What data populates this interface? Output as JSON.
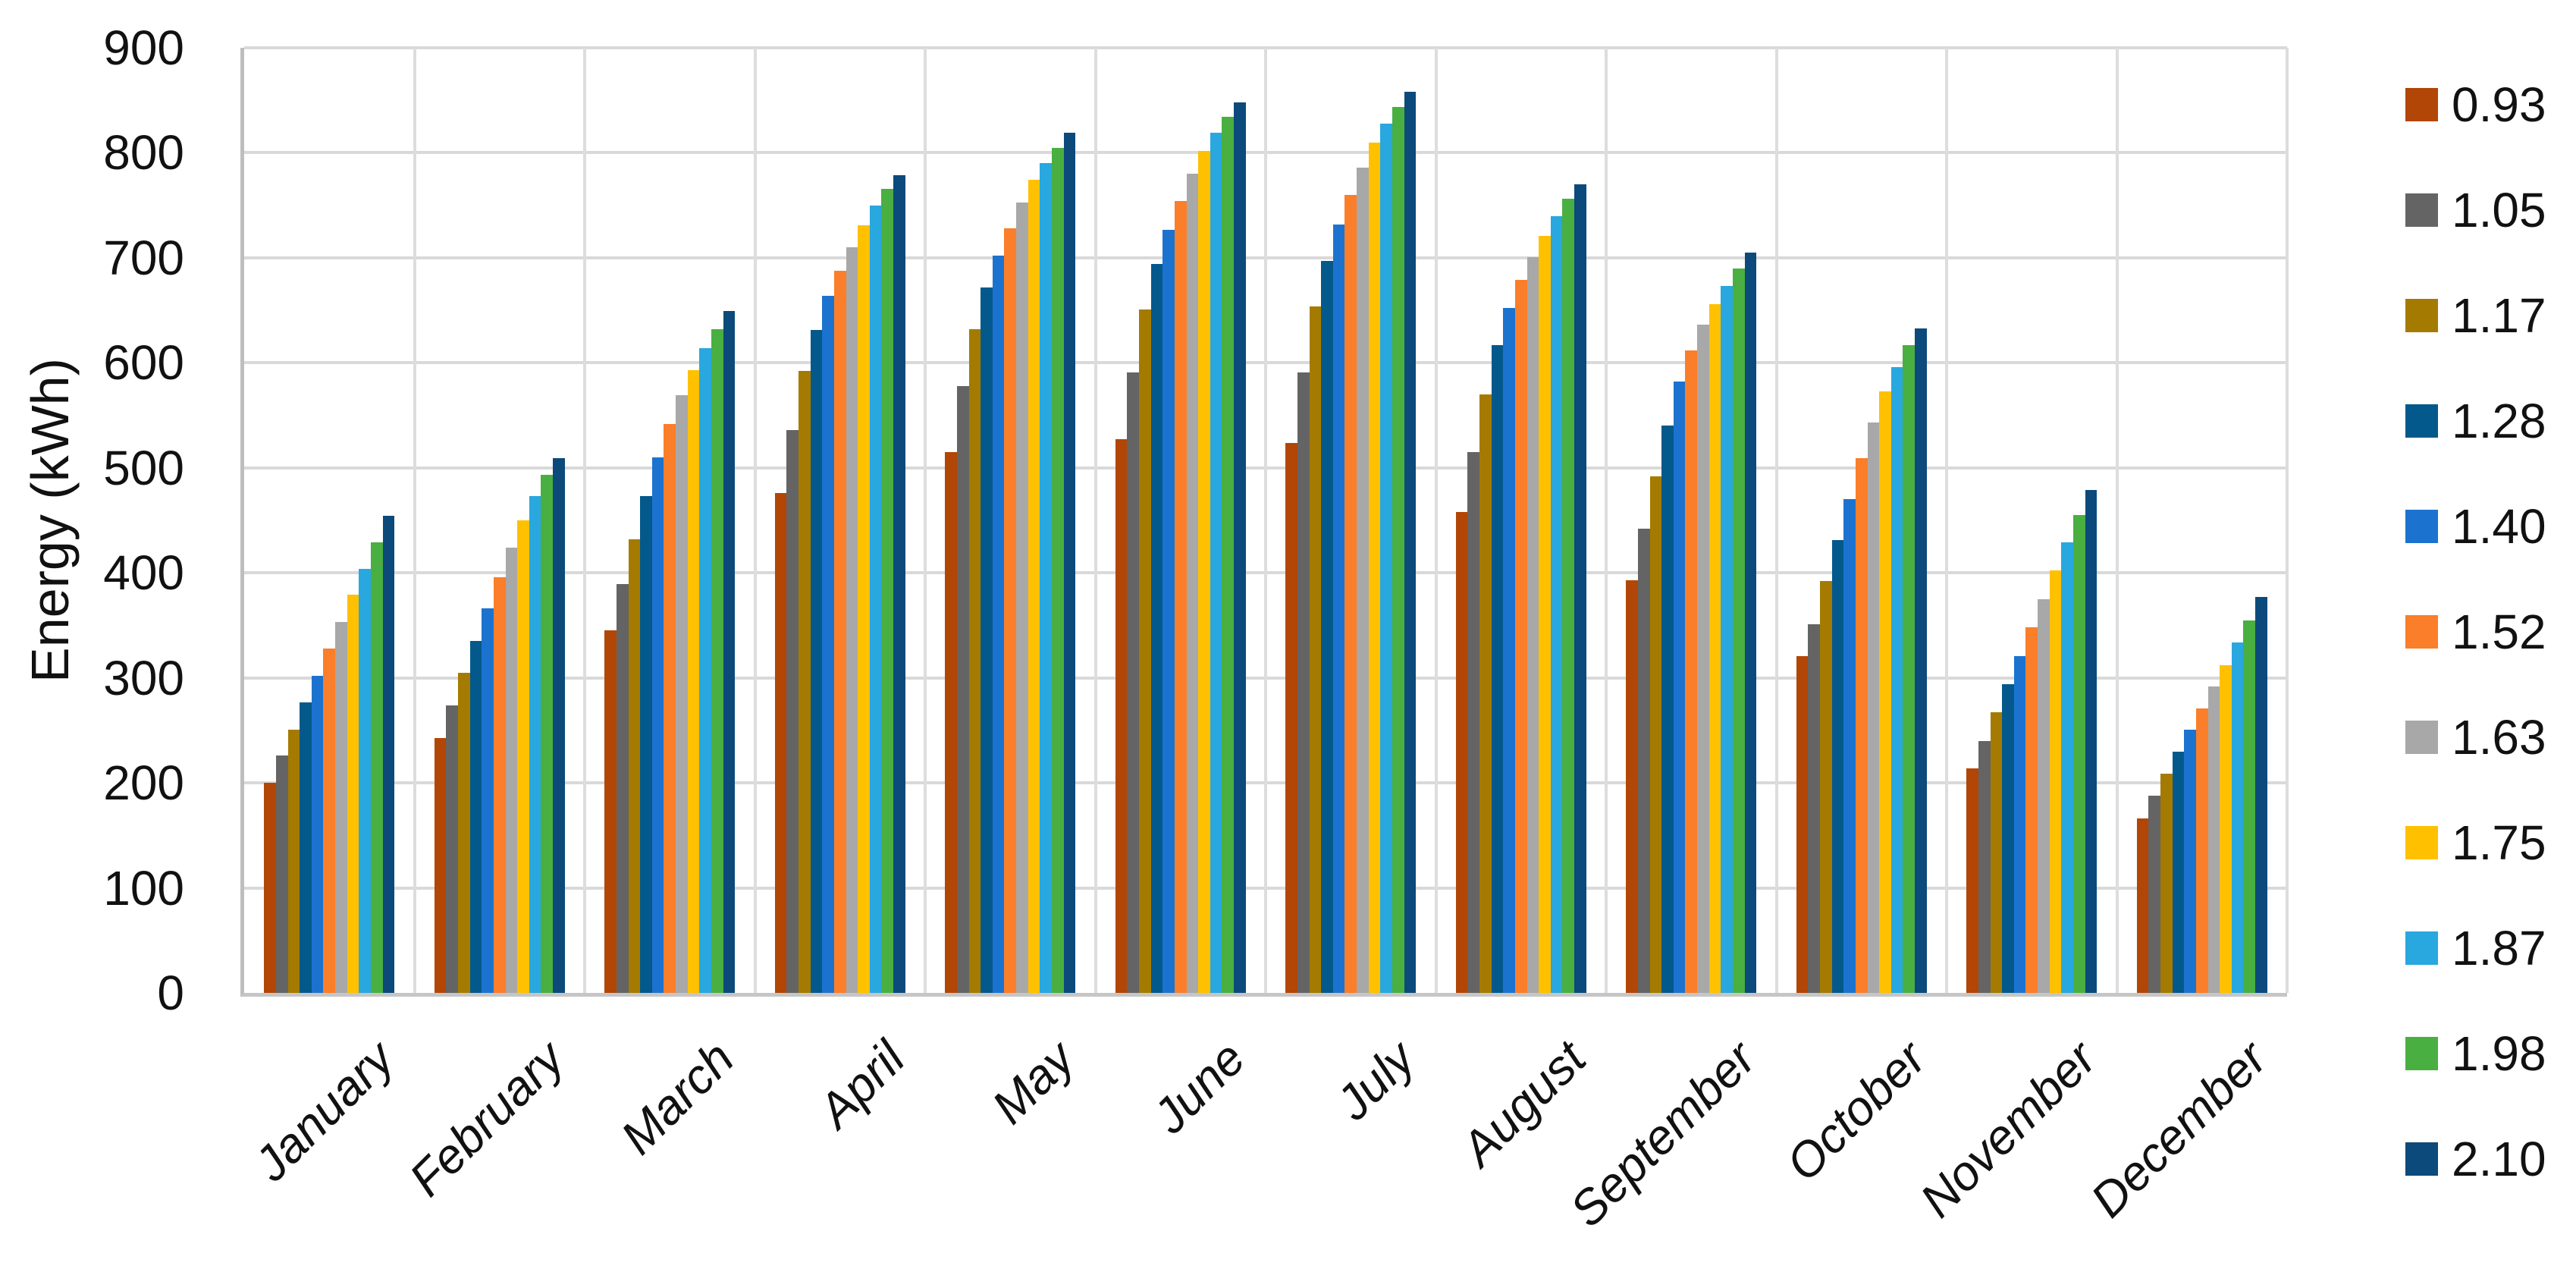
{
  "chart_data": {
    "type": "bar",
    "title": "",
    "xlabel": "",
    "ylabel": "Energy (kWh)",
    "ylim": [
      0,
      900
    ],
    "ytick_step": 100,
    "yticks": [
      0,
      100,
      200,
      300,
      400,
      500,
      600,
      700,
      800,
      900
    ],
    "grid": "horizontal and category-boundary vertical gridlines, light gray",
    "legend_position": "right",
    "categories": [
      "January",
      "February",
      "March",
      "April",
      "May",
      "June",
      "July",
      "August",
      "September",
      "October",
      "November",
      "December"
    ],
    "series": [
      {
        "name": "0.93",
        "color": "#B24606",
        "values": [
          200,
          243,
          345,
          476,
          515,
          527,
          524,
          458,
          393,
          321,
          214,
          166
        ]
      },
      {
        "name": "1.05",
        "color": "#646464",
        "values": [
          226,
          274,
          389,
          536,
          578,
          591,
          591,
          515,
          442,
          351,
          240,
          188
        ]
      },
      {
        "name": "1.17",
        "color": "#A47B00",
        "values": [
          251,
          305,
          432,
          592,
          632,
          651,
          654,
          570,
          492,
          392,
          267,
          209
        ]
      },
      {
        "name": "1.28",
        "color": "#04598C",
        "values": [
          277,
          335,
          473,
          631,
          672,
          694,
          697,
          617,
          540,
          431,
          294,
          230
        ]
      },
      {
        "name": "1.40",
        "color": "#1C73CF",
        "values": [
          302,
          366,
          510,
          664,
          702,
          727,
          732,
          652,
          582,
          470,
          321,
          251
        ]
      },
      {
        "name": "1.52",
        "color": "#FB7E2A",
        "values": [
          328,
          396,
          542,
          688,
          728,
          754,
          760,
          679,
          612,
          509,
          348,
          271
        ]
      },
      {
        "name": "1.63",
        "color": "#A8A8A8",
        "values": [
          353,
          424,
          569,
          710,
          753,
          780,
          786,
          701,
          636,
          543,
          375,
          292
        ]
      },
      {
        "name": "1.75",
        "color": "#FFC000",
        "values": [
          379,
          450,
          593,
          731,
          774,
          802,
          810,
          721,
          656,
          573,
          402,
          312
        ]
      },
      {
        "name": "1.87",
        "color": "#29A7DF",
        "values": [
          404,
          473,
          614,
          750,
          790,
          819,
          828,
          740,
          673,
          596,
          429,
          334
        ]
      },
      {
        "name": "1.98",
        "color": "#49AF41",
        "values": [
          429,
          493,
          632,
          766,
          805,
          834,
          844,
          756,
          690,
          617,
          455,
          355
        ]
      },
      {
        "name": "2.10",
        "color": "#0B4A7B",
        "values": [
          454,
          509,
          649,
          779,
          819,
          848,
          858,
          770,
          705,
          633,
          479,
          377
        ]
      }
    ]
  }
}
